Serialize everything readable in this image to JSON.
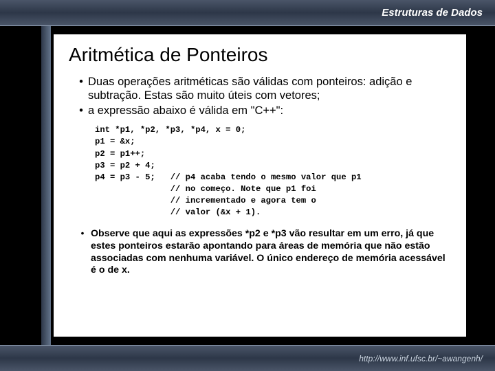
{
  "header": {
    "title": "Estruturas de Dados"
  },
  "slide": {
    "title": "Aritmética de Ponteiros",
    "bullets1": [
      "Duas operações aritméticas são válidas com ponteiros: adição e subtração. Estas são muito úteis com vetores;",
      "a expressão abaixo é válida em \"C++\":"
    ],
    "code": "int *p1, *p2, *p3, *p4, x = 0;\np1 = &x;\np2 = p1++;\np3 = p2 + 4;\np4 = p3 - 5;   // p4 acaba tendo o mesmo valor que p1\n               // no começo. Note que p1 foi\n               // incrementado e agora tem o\n               // valor (&x + 1).",
    "bullets2": [
      "Observe que aqui as expressões *p2 e *p3 vão resultar em um erro, já que estes ponteiros estarão apontando para áreas de memória que não estão associadas com nenhuma variável. O único endereço de memória acessável é o de x."
    ]
  },
  "footer": {
    "url": "http://www.inf.ufsc.br/~awangenh/"
  },
  "colors": {
    "background": "#000000",
    "panel": "#ffffff",
    "header_gradient_start": "#4a5568",
    "header_gradient_end": "#2d3748",
    "text": "#000000"
  }
}
